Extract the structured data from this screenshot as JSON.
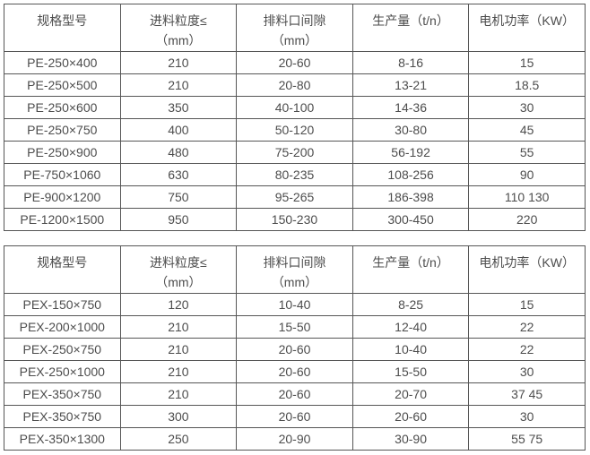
{
  "colors": {
    "border": "#565656",
    "text": "#4d4d4d",
    "background": "#ffffff"
  },
  "tables": [
    {
      "name": "pe-series-spec-table",
      "headers": [
        [
          "规格型号"
        ],
        [
          "进料粒度≤",
          "（mm）"
        ],
        [
          "排料口间隙",
          "（mm）"
        ],
        [
          "生产量（t/n）"
        ],
        [
          "电机功率（KW）"
        ]
      ],
      "rows": [
        [
          "PE-250×400",
          "210",
          "20-60",
          "8-16",
          "15"
        ],
        [
          "PE-250×500",
          "210",
          "20-80",
          "13-21",
          "18.5"
        ],
        [
          "PE-250×600",
          "350",
          "40-100",
          "14-36",
          "30"
        ],
        [
          "PE-250×750",
          "400",
          "50-120",
          "30-80",
          "45"
        ],
        [
          "PE-250×900",
          "480",
          "75-200",
          "56-192",
          "55"
        ],
        [
          "PE-750×1060",
          "630",
          "80-235",
          "108-256",
          "90"
        ],
        [
          "PE-900×1200",
          "750",
          "95-265",
          "186-398",
          "110 130"
        ],
        [
          "PE-1200×1500",
          "950",
          "150-230",
          "300-450",
          "220"
        ]
      ]
    },
    {
      "name": "pex-series-spec-table",
      "headers": [
        [
          "规格型号"
        ],
        [
          "进料粒度≤",
          "（mm）"
        ],
        [
          "排料口间隙",
          "（mm）"
        ],
        [
          "生产量（t/n）"
        ],
        [
          "电机功率（KW）"
        ]
      ],
      "rows": [
        [
          "PEX-150×750",
          "120",
          "10-40",
          "8-25",
          "15"
        ],
        [
          "PEX-200×1000",
          "210",
          "15-50",
          "12-40",
          "22"
        ],
        [
          "PEX-250×750",
          "210",
          "20-60",
          "10-40",
          "22"
        ],
        [
          "PEX-250×1000",
          "210",
          "20-60",
          "15-50",
          "30"
        ],
        [
          "PEX-350×750",
          "210",
          "20-60",
          "20-70",
          "37 45"
        ],
        [
          "PEX-350×750",
          "300",
          "20-60",
          "20-60",
          "30"
        ],
        [
          "PEX-350×1300",
          "250",
          "20-90",
          "30-90",
          "55 75"
        ]
      ]
    }
  ]
}
